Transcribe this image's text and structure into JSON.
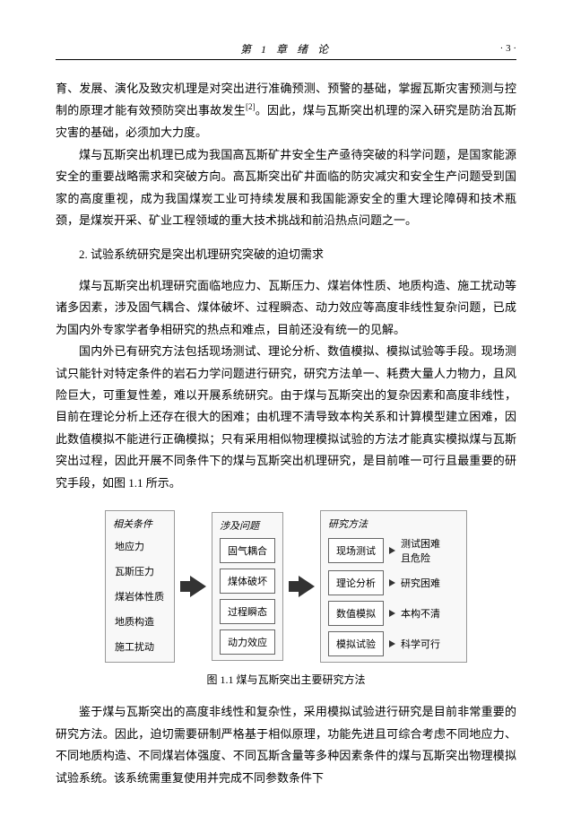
{
  "header": {
    "chapter": "第 1 章  绪    论",
    "page_num": "· 3 ·"
  },
  "paragraphs": {
    "p1": "育、发展、演化及致灾机理是对突出进行准确预测、预警的基础，掌握瓦斯灾害预测与控制的原理才能有效预防突出事故发生",
    "p1_ref": "[2]",
    "p1_end": "。因此，煤与瓦斯突出机理的深入研究是防治瓦斯灾害的基础，必须加大力度。",
    "p2": "煤与瓦斯突出机理已成为我国高瓦斯矿井安全生产亟待突破的科学问题，是国家能源安全的重要战略需求和突破方向。高瓦斯突出矿井面临的防灾减灾和安全生产问题受到国家的高度重视，成为我国煤炭工业可持续发展和我国能源安全的重大理论障碍和技术瓶颈，是煤炭开采、矿业工程领域的重大技术挑战和前沿热点问题之一。",
    "section2": "2. 试验系统研究是突出机理研究突破的迫切需求",
    "p3": "煤与瓦斯突出机理研究面临地应力、瓦斯压力、煤岩体性质、地质构造、施工扰动等诸多因素，涉及固气耦合、煤体破坏、过程瞬态、动力效应等高度非线性复杂问题，已成为国内外专家学者争相研究的热点和难点，目前还没有统一的见解。",
    "p4": "国内外已有研究方法包括现场测试、理论分析、数值模拟、模拟试验等手段。现场测试只能针对特定条件的岩石力学问题进行研究，研究方法单一、耗费大量人力物力，且风险巨大，可重复性差，难以开展系统研究。由于煤与瓦斯突出的复杂因素和高度非线性，目前在理论分析上还存在很大的困难；由机理不清导致本构关系和计算模型建立困难，因此数值模拟不能进行正确模拟；只有采用相似物理模拟试验的方法才能真实模拟煤与瓦斯突出过程，因此开展不同条件下的煤与瓦斯突出机理研究，是目前唯一可行且最重要的研究手段，如图 1.1 所示。",
    "p5": "鉴于煤与瓦斯突出的高度非线性和复杂性，采用模拟试验进行研究是目前非常重要的研究方法。因此，迫切需要研制严格基于相似原理，功能先进且可综合考虑不同地应力、不同地质构造、不同煤岩体强度、不同瓦斯含量等多种因素条件的煤与瓦斯突出物理模拟试验系统。该系统需重复使用并完成不同参数条件下"
  },
  "figure": {
    "caption": "图 1.1  煤与瓦斯突出主要研究方法",
    "col1_title": "相关条件",
    "col1_items": [
      "地应力",
      "瓦斯压力",
      "煤岩体性质",
      "地质构造",
      "施工扰动"
    ],
    "col2_title": "涉及问题",
    "col2_items": [
      "固气耦合",
      "煤体破坏",
      "过程瞬态",
      "动力效应"
    ],
    "col3_title": "研究方法",
    "col3_rows": [
      {
        "left": "现场测试",
        "right": "测试困难\n且危险"
      },
      {
        "left": "理论分析",
        "right": "研究困难"
      },
      {
        "left": "数值模拟",
        "right": "本构不清"
      },
      {
        "left": "模拟试验",
        "right": "科学可行"
      }
    ]
  }
}
